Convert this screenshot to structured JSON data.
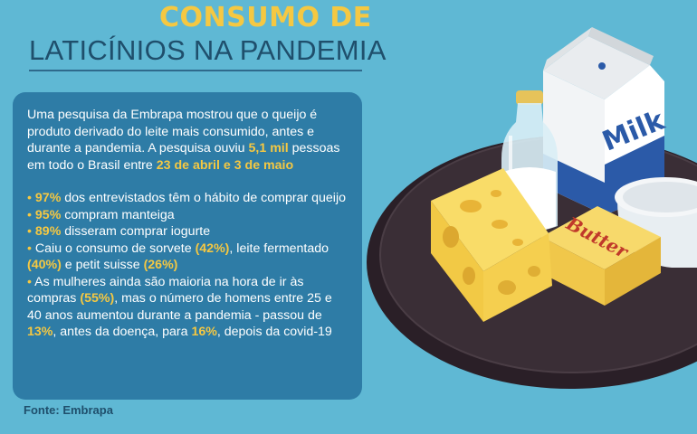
{
  "title": {
    "line1": "CONSUMO DE",
    "line2": "LATICÍNIOS NA PANDEMIA"
  },
  "intro": {
    "t1": "Uma pesquisa da Embrapa mostrou que o queijo é produto derivado do leite mais consumido, antes e durante a pandemia. A pesquisa ouviu ",
    "h1": "5,1 mil",
    "t2": " pessoas em todo o Brasil entre ",
    "h2": "23 de abril e 3 de maio"
  },
  "bullet_char": "•",
  "bullets": {
    "b1": {
      "h1": "97%",
      "t1": " dos entrevistados têm o hábito de comprar queijo"
    },
    "b2": {
      "h1": "95%",
      "t1": " compram manteiga"
    },
    "b3": {
      "h1": "89%",
      "t1": " disseram comprar iogurte"
    },
    "b4": {
      "t1": " Caiu o consumo de sorvete ",
      "h1": "(42%)",
      "t2": ", leite fermentado ",
      "h2": "(40%)",
      "t3": " e petit suisse ",
      "h3": "(26%)"
    },
    "b5": {
      "t1": " As mulheres ainda são maioria na hora de ir às compras ",
      "h1": "(55%)",
      "t2": ", mas o número de homens entre 25 e 40 anos aumentou durante a pandemia - passou de ",
      "h2": "13%",
      "t3": ", antes da doença, para ",
      "h3": "16%",
      "t4": ", depois da covid-19"
    }
  },
  "source": "Fonte: Embrapa",
  "illustration": {
    "milk_label": "Milk",
    "butter_label": "Butter"
  },
  "colors": {
    "background": "#5fb8d4",
    "accent": "#f5c842",
    "panel": "#2e7ca6",
    "title_dark": "#1f4f6c"
  }
}
